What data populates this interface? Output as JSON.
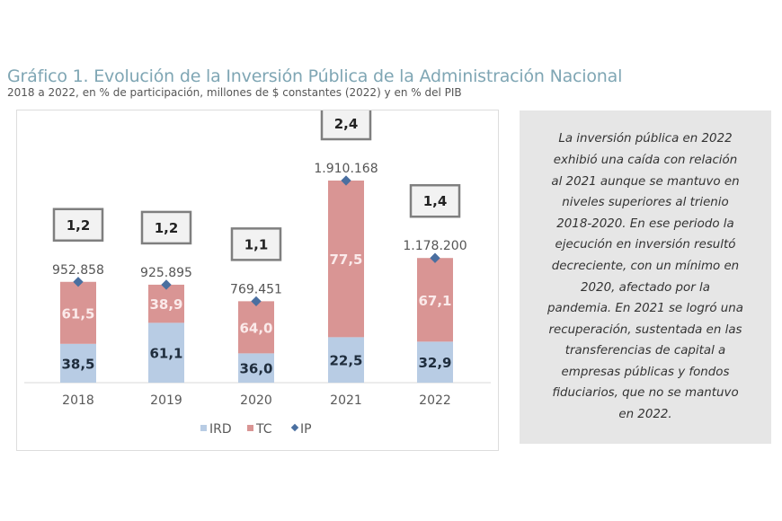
{
  "chart_data": {
    "type": "bar",
    "stacked": true,
    "title": "Gráfico 1. Evolución de la Inversión Pública de la Administración Nacional",
    "subtitle": "2018 a 2022, en % de participación, millones de $ constantes (2022) y en % del PIB",
    "categories": [
      "2018",
      "2019",
      "2020",
      "2021",
      "2022"
    ],
    "series": [
      {
        "name": "IRD",
        "values": [
          38.5,
          61.1,
          36.0,
          22.5,
          32.9
        ],
        "labels": [
          "38,5",
          "61,1",
          "36,0",
          "22,5",
          "32,9"
        ],
        "color": "#b8cce4"
      },
      {
        "name": "TC",
        "values": [
          61.5,
          38.9,
          64.0,
          77.5,
          67.1
        ],
        "labels": [
          "61,5",
          "38,9",
          "64,0",
          "77,5",
          "67,1"
        ],
        "color": "#d99594"
      },
      {
        "name": "IP",
        "values": [
          952858,
          925895,
          769451,
          1910168,
          1178200
        ],
        "labels": [
          "952.858",
          "925.895",
          "769.451",
          "1.910.168",
          "1.178.200"
        ],
        "color": "#4a6fa0"
      }
    ],
    "pib_percent": [
      1.2,
      1.2,
      1.1,
      2.4,
      1.4
    ],
    "pib_labels": [
      "1,2",
      "1,2",
      "1,1",
      "2,4",
      "1,4"
    ],
    "legend": [
      "IRD",
      "TC",
      "IP"
    ],
    "legend_position": "bottom",
    "grid": false
  },
  "note": [
    "La inversión pública en 2022",
    "exhibió una caída con relación",
    "al 2021 aunque se mantuvo en",
    "niveles superiores al trienio",
    "2018-2020. En ese periodo la",
    "ejecución en inversión resultó",
    "decreciente, con un mínimo en",
    "2020, afectado por la",
    "pandemia. En 2021 se logró una",
    "recuperación, sustentada en las",
    "transferencias de capital a",
    "empresas públicas y fondos",
    "fiduciarios, que no se mantuvo",
    "en 2022."
  ]
}
